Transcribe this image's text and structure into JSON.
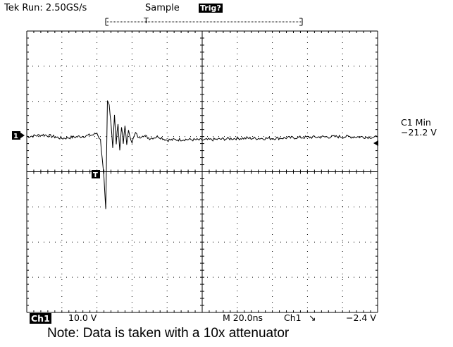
{
  "header": {
    "run_status": "Tek Run: 2.50GS/s",
    "acquisition_mode": "Sample",
    "trigger_status": "Trig?"
  },
  "footer": {
    "channel_label": "Ch1",
    "volts_per_div": "10.0 V",
    "timebase": "M 20.0ns",
    "trigger_source": "Ch1",
    "trigger_slope_symbol": "↘",
    "trigger_level": "−2.4 V"
  },
  "measurement": {
    "label": "C1 Min",
    "value": "−21.2 V"
  },
  "markers": {
    "channel_marker": "1",
    "trigger_marker": "T"
  },
  "note": "Note: Data is taken with a 10x attenuator",
  "chart_data": {
    "type": "line",
    "xlabel": "",
    "ylabel": "",
    "grid": true,
    "x_divisions": 10,
    "y_divisions": 8,
    "volts_per_div": 10,
    "seconds_per_div_ns": 20,
    "xlim_ns": [
      0,
      200
    ],
    "ylim_div": [
      -4,
      4
    ],
    "trace_color": "#000000",
    "series": [
      {
        "x_ns": [
          0,
          10,
          20,
          30,
          38,
          40,
          42,
          43,
          44,
          45,
          46,
          47,
          48,
          49,
          50,
          51,
          52,
          53,
          54,
          55,
          56,
          57,
          58,
          60,
          62,
          64,
          66,
          70,
          75,
          80,
          90,
          100,
          120,
          140,
          160,
          180,
          200
        ],
        "y_div": [
          0.0,
          0.05,
          -0.05,
          0.0,
          0.05,
          0.1,
          -0.1,
          -0.6,
          -1.2,
          -2.1,
          1.0,
          0.9,
          0.4,
          -0.3,
          0.6,
          -0.2,
          0.4,
          -0.4,
          0.3,
          -0.2,
          0.3,
          -0.2,
          0.15,
          -0.15,
          0.1,
          -0.05,
          0.05,
          -0.05,
          0.0,
          -0.1,
          -0.08,
          -0.1,
          -0.05,
          -0.05,
          -0.02,
          0.0,
          -0.02
        ]
      }
    ]
  }
}
